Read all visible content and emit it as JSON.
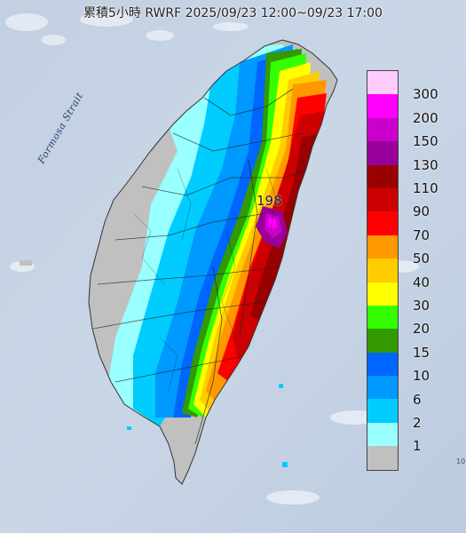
{
  "title": "累積5小時 RWRF 2025/09/23 12:00~09/23 17:00",
  "strait_label": "Formosa Strait",
  "max_value": "198",
  "stray_label": "10",
  "legend": [
    {
      "label": "300",
      "color": "#ffccff"
    },
    {
      "label": "200",
      "color": "#ff00ff"
    },
    {
      "label": "150",
      "color": "#cc00cc"
    },
    {
      "label": "130",
      "color": "#990099"
    },
    {
      "label": "110",
      "color": "#990000"
    },
    {
      "label": "90",
      "color": "#cc0000"
    },
    {
      "label": "70",
      "color": "#ff0000"
    },
    {
      "label": "50",
      "color": "#ff9900"
    },
    {
      "label": "40",
      "color": "#ffcc00"
    },
    {
      "label": "30",
      "color": "#ffff00"
    },
    {
      "label": "20",
      "color": "#33ff00"
    },
    {
      "label": "15",
      "color": "#339900"
    },
    {
      "label": "10",
      "color": "#0066ff"
    },
    {
      "label": "6",
      "color": "#0099ff"
    },
    {
      "label": "2",
      "color": "#00ccff"
    },
    {
      "label": "1",
      "color": "#99ffff"
    },
    {
      "label": "",
      "color": "#c0c0c0"
    }
  ]
}
